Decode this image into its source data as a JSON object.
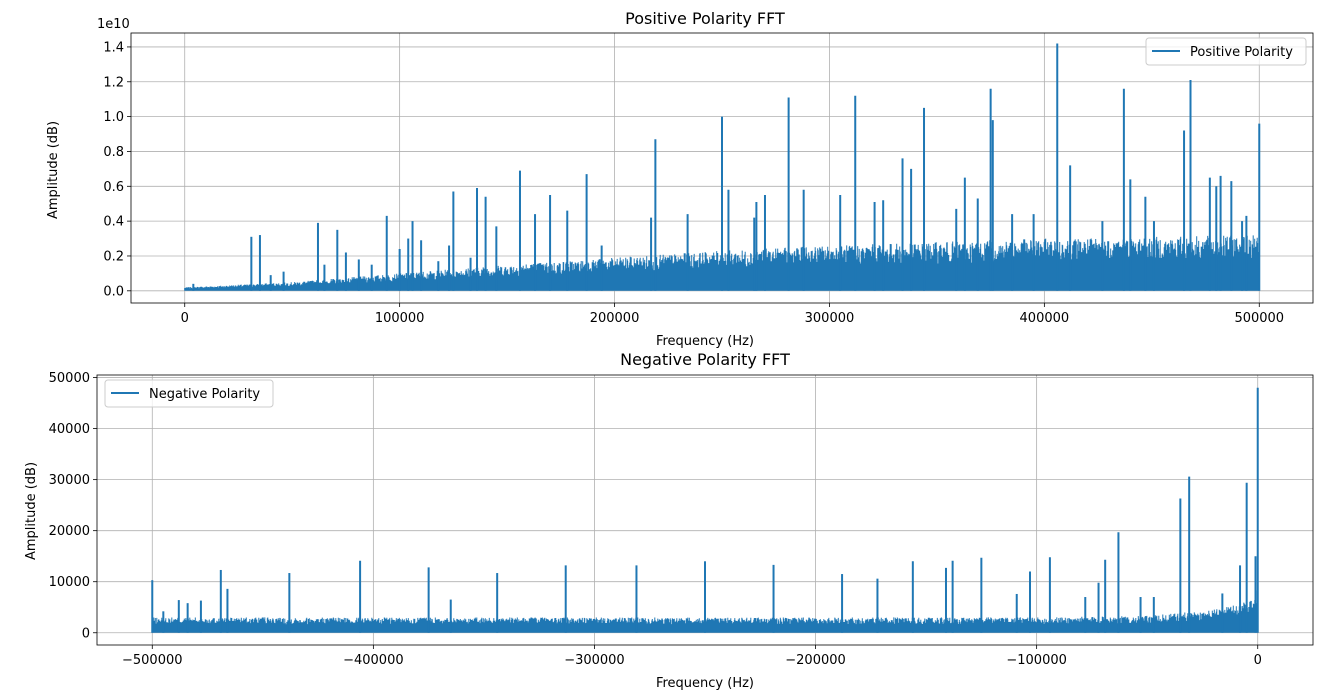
{
  "chart_data": [
    {
      "type": "line",
      "title": "Positive Polarity FFT",
      "xlabel": "Frequency (Hz)",
      "ylabel": "Amplitude (dB)",
      "y_offset_label": "1e10",
      "y_scale_factor": 10000000000,
      "xlim": [
        -25000,
        525000
      ],
      "ylim": [
        -0.07,
        1.48
      ],
      "xticks": [
        0,
        100000,
        200000,
        300000,
        400000,
        500000
      ],
      "xtick_labels": [
        "0",
        "100000",
        "200000",
        "300000",
        "400000",
        "500000"
      ],
      "yticks": [
        0.0,
        0.2,
        0.4,
        0.6,
        0.8,
        1.0,
        1.2,
        1.4
      ],
      "ytick_labels": [
        "0.0",
        "0.2",
        "0.4",
        "0.6",
        "0.8",
        "1.0",
        "1.2",
        "1.4"
      ],
      "grid": true,
      "legend_position": "top-right",
      "series": [
        {
          "name": "Positive Polarity",
          "color": "#1f77b4",
          "noise_envelope": [
            [
              0,
              0.02
            ],
            [
              50000,
              0.05
            ],
            [
              100000,
              0.1
            ],
            [
              150000,
              0.15
            ],
            [
              200000,
              0.19
            ],
            [
              250000,
              0.23
            ],
            [
              300000,
              0.26
            ],
            [
              350000,
              0.28
            ],
            [
              400000,
              0.3
            ],
            [
              450000,
              0.31
            ],
            [
              500000,
              0.32
            ]
          ],
          "peaks": [
            [
              4000,
              0.04
            ],
            [
              31000,
              0.31
            ],
            [
              35000,
              0.32
            ],
            [
              40000,
              0.09
            ],
            [
              46000,
              0.11
            ],
            [
              62000,
              0.39
            ],
            [
              65000,
              0.15
            ],
            [
              71000,
              0.35
            ],
            [
              75000,
              0.22
            ],
            [
              81000,
              0.18
            ],
            [
              87000,
              0.15
            ],
            [
              94000,
              0.43
            ],
            [
              100000,
              0.24
            ],
            [
              104000,
              0.3
            ],
            [
              106000,
              0.4
            ],
            [
              110000,
              0.29
            ],
            [
              118000,
              0.17
            ],
            [
              123000,
              0.26
            ],
            [
              125000,
              0.57
            ],
            [
              133000,
              0.19
            ],
            [
              136000,
              0.59
            ],
            [
              140000,
              0.54
            ],
            [
              145000,
              0.37
            ],
            [
              156000,
              0.69
            ],
            [
              163000,
              0.44
            ],
            [
              170000,
              0.55
            ],
            [
              178000,
              0.46
            ],
            [
              187000,
              0.67
            ],
            [
              194000,
              0.26
            ],
            [
              217000,
              0.42
            ],
            [
              219000,
              0.87
            ],
            [
              234000,
              0.44
            ],
            [
              250000,
              1.0
            ],
            [
              253000,
              0.58
            ],
            [
              265000,
              0.42
            ],
            [
              266000,
              0.51
            ],
            [
              270000,
              0.55
            ],
            [
              281000,
              1.11
            ],
            [
              288000,
              0.58
            ],
            [
              305000,
              0.55
            ],
            [
              312000,
              1.12
            ],
            [
              321000,
              0.51
            ],
            [
              325000,
              0.52
            ],
            [
              334000,
              0.76
            ],
            [
              338000,
              0.7
            ],
            [
              344000,
              1.05
            ],
            [
              359000,
              0.47
            ],
            [
              363000,
              0.65
            ],
            [
              369000,
              0.53
            ],
            [
              375000,
              1.16
            ],
            [
              376000,
              0.98
            ],
            [
              385000,
              0.44
            ],
            [
              395000,
              0.44
            ],
            [
              406000,
              1.42
            ],
            [
              412000,
              0.72
            ],
            [
              427000,
              0.4
            ],
            [
              437000,
              1.16
            ],
            [
              440000,
              0.64
            ],
            [
              447000,
              0.54
            ],
            [
              451000,
              0.4
            ],
            [
              465000,
              0.92
            ],
            [
              468000,
              1.21
            ],
            [
              477000,
              0.65
            ],
            [
              480000,
              0.6
            ],
            [
              482000,
              0.66
            ],
            [
              487000,
              0.63
            ],
            [
              492000,
              0.4
            ],
            [
              494000,
              0.43
            ],
            [
              500000,
              0.96
            ]
          ]
        }
      ]
    },
    {
      "type": "line",
      "title": "Negative Polarity FFT",
      "xlabel": "Frequency (Hz)",
      "ylabel": "Amplitude (dB)",
      "xlim": [
        -525000,
        25000
      ],
      "ylim": [
        -2400,
        50500
      ],
      "xticks": [
        -500000,
        -400000,
        -300000,
        -200000,
        -100000,
        0
      ],
      "xtick_labels": [
        "−500000",
        "−400000",
        "−300000",
        "−200000",
        "−100000",
        "0"
      ],
      "yticks": [
        0,
        10000,
        20000,
        30000,
        40000,
        50000
      ],
      "ytick_labels": [
        "0",
        "10000",
        "20000",
        "30000",
        "40000",
        "50000"
      ],
      "grid": true,
      "legend_position": "top-left",
      "series": [
        {
          "name": "Negative Polarity",
          "color": "#1f77b4",
          "noise_envelope": [
            [
              -500000,
              3000
            ],
            [
              -100000,
              3000
            ],
            [
              -50000,
              3300
            ],
            [
              -20000,
              4500
            ],
            [
              -10000,
              5500
            ],
            [
              -2000,
              7000
            ],
            [
              0,
              8500
            ]
          ],
          "peaks": [
            [
              -500000,
              10300
            ],
            [
              -495000,
              4200
            ],
            [
              -488000,
              6400
            ],
            [
              -484000,
              5800
            ],
            [
              -478000,
              6300
            ],
            [
              -469000,
              12300
            ],
            [
              -466000,
              8600
            ],
            [
              -438000,
              11700
            ],
            [
              -406000,
              14100
            ],
            [
              -375000,
              12800
            ],
            [
              -365000,
              6500
            ],
            [
              -344000,
              11700
            ],
            [
              -313000,
              13200
            ],
            [
              -281000,
              13200
            ],
            [
              -250000,
              14000
            ],
            [
              -219000,
              13300
            ],
            [
              -188000,
              11500
            ],
            [
              -172000,
              10600
            ],
            [
              -156000,
              14000
            ],
            [
              -141000,
              12700
            ],
            [
              -138000,
              14100
            ],
            [
              -125000,
              14700
            ],
            [
              -109000,
              7600
            ],
            [
              -103000,
              12000
            ],
            [
              -94000,
              14800
            ],
            [
              -78000,
              7000
            ],
            [
              -72000,
              9800
            ],
            [
              -69000,
              14300
            ],
            [
              -63000,
              19700
            ],
            [
              -53000,
              7000
            ],
            [
              -47000,
              7000
            ],
            [
              -35000,
              26300
            ],
            [
              -31000,
              30600
            ],
            [
              -16000,
              7700
            ],
            [
              -8000,
              13200
            ],
            [
              -5000,
              29400
            ],
            [
              -1000,
              15000
            ],
            [
              0,
              48000
            ]
          ]
        }
      ]
    }
  ]
}
